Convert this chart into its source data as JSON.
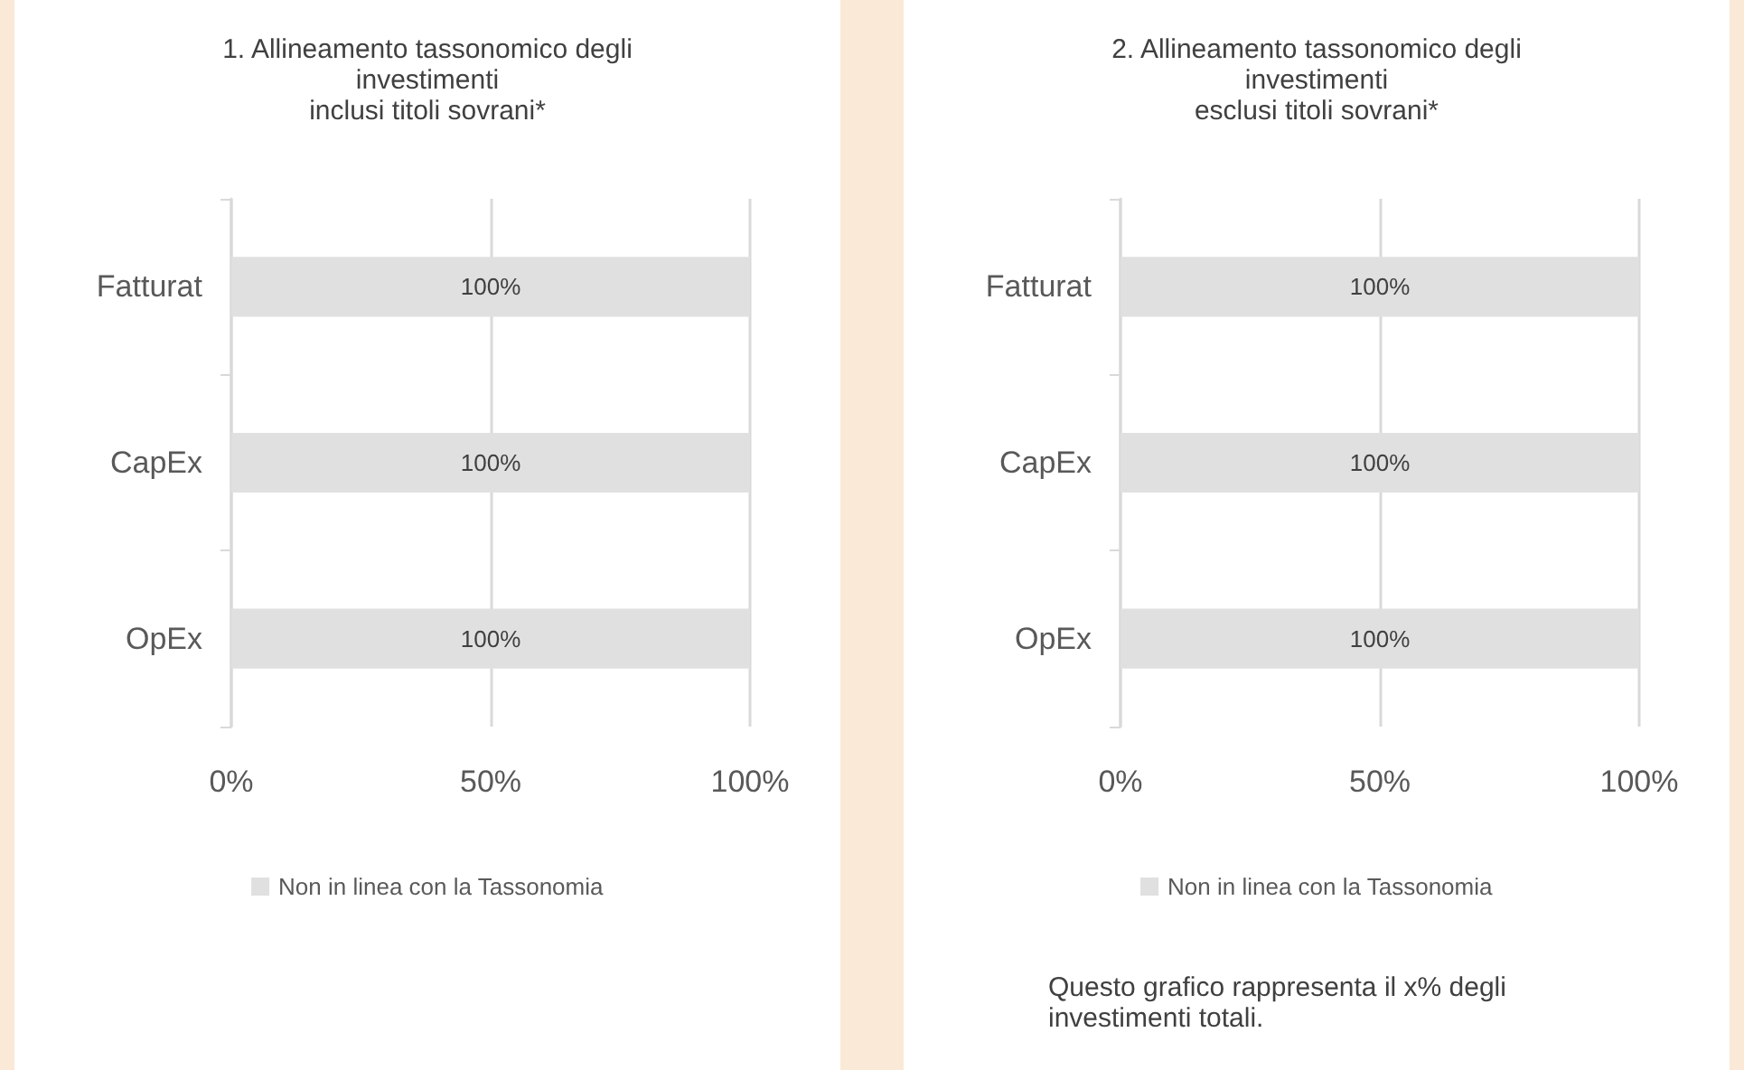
{
  "chart_data": [
    {
      "type": "bar",
      "orientation": "horizontal",
      "title": "1. Allineamento tassonomico degli\ninvestimenti\ninclusi titoli sovrani*",
      "categories": [
        "Fatturat",
        "CapEx",
        "OpEx"
      ],
      "series": [
        {
          "name": "Non in linea con la Tassonomia",
          "color": "#e0e0e0",
          "values": [
            100,
            100,
            100
          ],
          "value_labels": [
            "100%",
            "100%",
            "100%"
          ]
        }
      ],
      "xlim": [
        0,
        100
      ],
      "xticks": [
        {
          "value": 0,
          "label": "0%"
        },
        {
          "value": 50,
          "label": "50%"
        },
        {
          "value": 100,
          "label": "100%"
        }
      ],
      "grid": "x",
      "legend": "bottom"
    },
    {
      "type": "bar",
      "orientation": "horizontal",
      "title": "2. Allineamento tassonomico degli\ninvestimenti\nesclusi titoli sovrani*",
      "categories": [
        "Fatturat",
        "CapEx",
        "OpEx"
      ],
      "series": [
        {
          "name": "Non in linea con la Tassonomia",
          "color": "#e0e0e0",
          "values": [
            100,
            100,
            100
          ],
          "value_labels": [
            "100%",
            "100%",
            "100%"
          ]
        }
      ],
      "xlim": [
        0,
        100
      ],
      "xticks": [
        {
          "value": 0,
          "label": "0%"
        },
        {
          "value": 50,
          "label": "50%"
        },
        {
          "value": 100,
          "label": "100%"
        }
      ],
      "grid": "x",
      "legend": "bottom",
      "annotations": [
        "Questo grafico rappresenta il x% degli\ninvestimenti totali."
      ]
    }
  ]
}
